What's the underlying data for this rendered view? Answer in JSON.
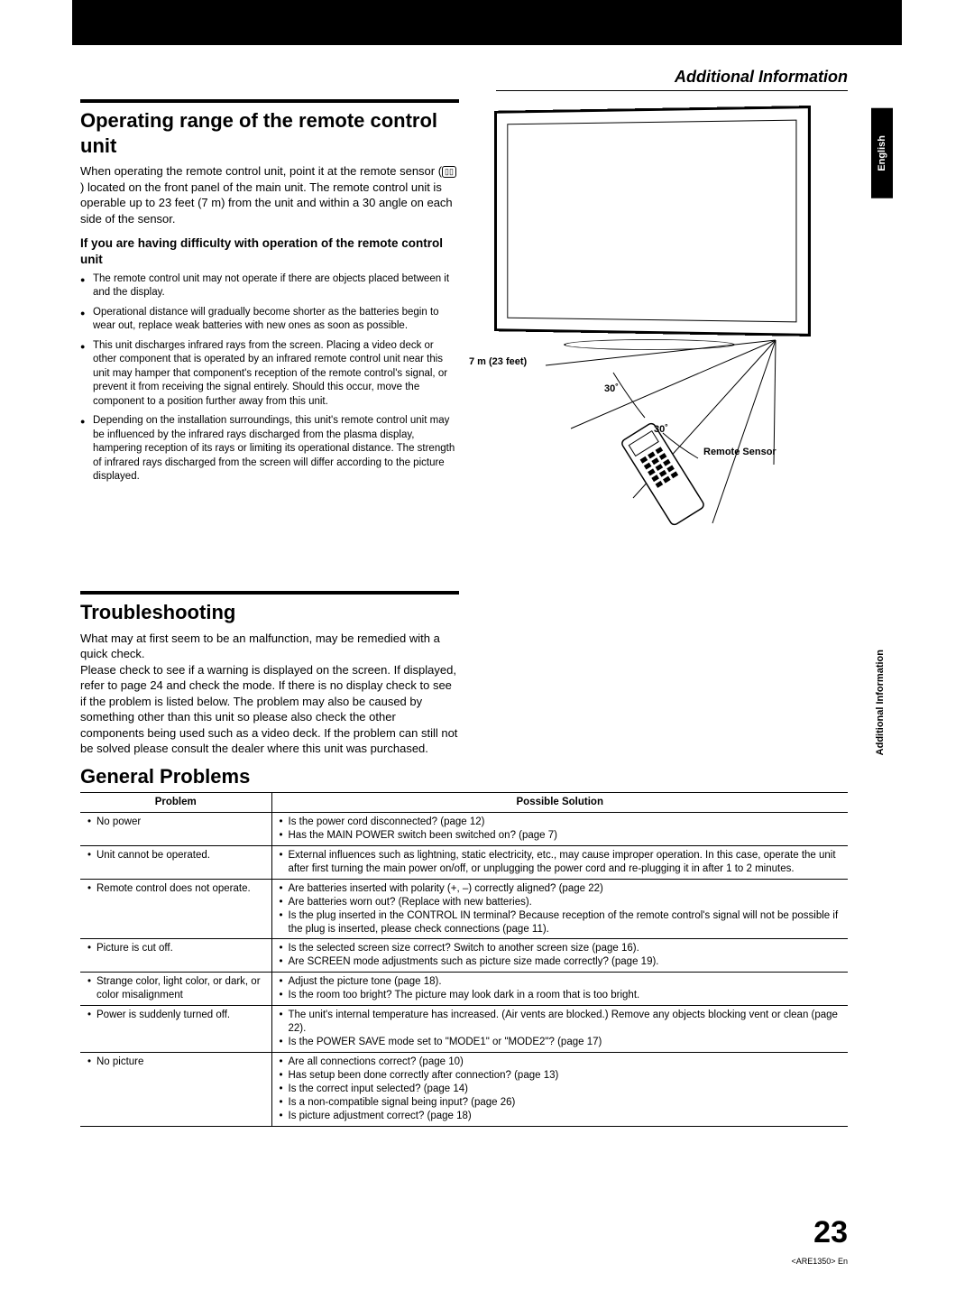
{
  "header": {
    "section_heading": "Additional Information",
    "language_tab": "English",
    "side_tab": "Additional Information"
  },
  "section1": {
    "title": "Operating range of the remote control unit",
    "intro": "When operating the remote control unit, point it at the remote sensor (  ) located on the front panel of the main unit. The remote control unit is operable up to 23 feet (7 m) from the unit and within a 30 angle on each side of the sensor.",
    "subhead": "If you are having difficulty with operation of the remote control unit",
    "bullets": [
      "The remote control unit may not operate if there are objects placed between it and the display.",
      "Operational distance will gradually become shorter as the batteries begin to wear out, replace weak batteries with new ones as soon as possible.",
      "This unit discharges infrared rays from the screen. Placing a video deck or other component that is operated by an infrared remote control unit near this unit may hamper that component's reception of the remote control's signal, or prevent it from receiving the signal entirely. Should this occur, move the component to a position further away from this unit.",
      "Depending on the installation surroundings, this unit's remote control unit may be influenced by the infrared rays discharged from the plasma display, hampering reception of its rays or limiting its operational distance. The strength of infrared rays discharged from the screen will differ according to the picture displayed."
    ]
  },
  "figure": {
    "label_distance": "7 m (23 feet)",
    "label_angle1": "30˚",
    "label_angle2": "30˚",
    "label_sensor": "Remote Sensor"
  },
  "section2": {
    "title": "Troubleshooting",
    "body": "What may at first seem to be an malfunction, may be remedied with a quick check.\nPlease check to see if a warning is displayed on the screen. If displayed, refer to page 24 and check the mode. If there is no display check to see if the problem is listed below. The problem may also be caused by something other than this unit so please also check the other components being used such as a video deck. If the problem can still not be solved please consult the dealer where this unit was purchased."
  },
  "section3": {
    "title": "General Problems",
    "col1": "Problem",
    "col2": "Possible Solution",
    "rows": [
      {
        "problem": [
          "No power"
        ],
        "solution": [
          "Is the power cord disconnected? (page 12)",
          "Has the MAIN POWER switch been switched on? (page 7)"
        ]
      },
      {
        "problem": [
          "Unit cannot be operated."
        ],
        "solution": [
          "External influences such as lightning, static electricity, etc., may cause improper operation. In this case, operate the unit after first turning the main power on/off, or unplugging the power cord and re-plugging it in after 1 to 2 minutes."
        ]
      },
      {
        "problem": [
          "Remote control does not operate."
        ],
        "solution": [
          "Are batteries inserted with polarity (+, –) correctly aligned? (page 22)",
          "Are batteries worn out? (Replace with new batteries).",
          "Is the plug inserted in the CONTROL IN terminal? Because reception of the remote control's signal will not be possible if the plug is inserted, please check connections (page 11)."
        ]
      },
      {
        "problem": [
          "Picture is cut off."
        ],
        "solution": [
          "Is the selected screen size correct? Switch to another screen size (page 16).",
          "Are SCREEN mode adjustments such as picture size made correctly? (page 19)."
        ]
      },
      {
        "problem": [
          "Strange color, light color, or dark, or color misalignment"
        ],
        "solution": [
          "Adjust the picture tone (page 18).",
          "Is the room too bright? The picture may look dark in a room that is too bright."
        ]
      },
      {
        "problem": [
          "Power is suddenly turned off."
        ],
        "solution": [
          "The unit's internal temperature has increased. (Air vents are blocked.) Remove any objects blocking vent or clean (page 22).",
          "Is the POWER SAVE mode set to \"MODE1\" or \"MODE2\"? (page 17)"
        ]
      },
      {
        "problem": [
          "No picture"
        ],
        "solution": [
          "Are all connections correct? (page 10)",
          "Has setup been done correctly after connection? (page 13)",
          "Is the correct input selected? (page 14)",
          "Is a non-compatible signal being input? (page 26)",
          "Is picture adjustment correct? (page 18)"
        ]
      }
    ]
  },
  "footer": {
    "page_number": "23",
    "doc_code": "<ARE1350> En"
  }
}
